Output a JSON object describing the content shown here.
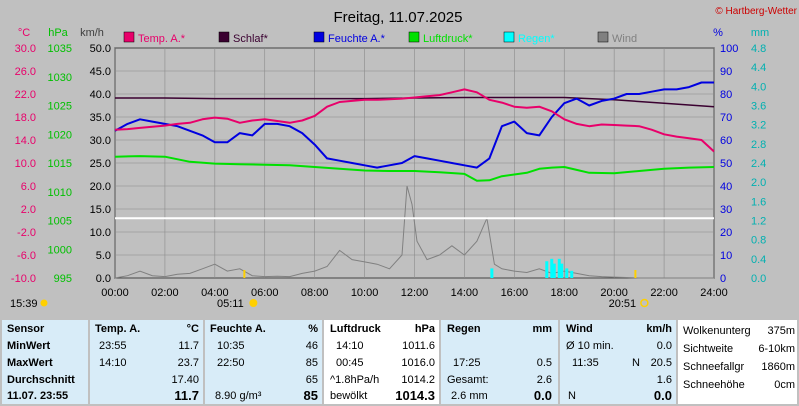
{
  "header": {
    "title": "Freitag, 11.07.2025",
    "copyright": "© Hartberg-Wetter"
  },
  "axes": {
    "unit_temp": "°C",
    "unit_hpa": "hPa",
    "unit_kmh": "km/h",
    "unit_pct": "%",
    "unit_mm": "mm",
    "temp_ticks": [
      "30.0",
      "26.0",
      "22.0",
      "18.0",
      "14.0",
      "10.0",
      "6.0",
      "2.0",
      "-2.0",
      "-6.0",
      "-10.0"
    ],
    "hpa_ticks": [
      "1035",
      "1030",
      "1025",
      "1020",
      "1015",
      "1010",
      "1005",
      "1000",
      "995"
    ],
    "kmh_ticks": [
      "50.0",
      "45.0",
      "40.0",
      "35.0",
      "30.0",
      "25.0",
      "20.0",
      "15.0",
      "10.0",
      "5.0",
      "0.0"
    ],
    "pct_ticks": [
      "100",
      "90",
      "80",
      "70",
      "60",
      "50",
      "40",
      "30",
      "20",
      "10",
      "0"
    ],
    "mm_ticks": [
      "4.8",
      "4.4",
      "4.0",
      "3.6",
      "3.2",
      "2.8",
      "2.4",
      "2.0",
      "1.6",
      "1.2",
      "0.8",
      "0.4",
      "0.0"
    ],
    "time_ticks": [
      "00:00",
      "02:00",
      "04:00",
      "06:00",
      "08:00",
      "10:00",
      "12:00",
      "14:00",
      "16:00",
      "18:00",
      "20:00",
      "22:00",
      "24:00"
    ]
  },
  "sun": {
    "sunrise": "05:11",
    "sunset": "20:51",
    "now_time": "15:39"
  },
  "colors": {
    "temp": "#e8006a",
    "schlaf": "#3a0030",
    "feuchte": "#0000e0",
    "luftdruck": "#00e000",
    "regen": "#00ffff",
    "wind": "#808080",
    "background_plot": "#c0c0c0"
  },
  "chart_data": {
    "type": "line",
    "title": "Freitag, 11.07.2025",
    "x_unit": "hour of day",
    "xlim": [
      0,
      24
    ],
    "legend_position": "top",
    "series": [
      {
        "name": "Temp. A.*",
        "axis": "°C",
        "ylim": [
          -10,
          30
        ],
        "x": [
          0,
          0.5,
          1,
          1.5,
          2,
          2.5,
          3,
          3.5,
          4,
          4.5,
          5,
          5.5,
          6,
          6.5,
          7,
          7.5,
          8,
          8.5,
          9,
          9.5,
          10,
          10.5,
          11,
          11.5,
          12,
          12.5,
          13,
          13.5,
          14,
          14.5,
          15,
          15.5,
          16,
          16.5,
          17,
          17.5,
          18,
          18.5,
          19,
          19.5,
          20,
          20.5,
          21,
          21.5,
          22,
          22.5,
          23,
          23.5,
          24
        ],
        "y": [
          15.8,
          15.9,
          16.1,
          16.3,
          16.5,
          16.8,
          17.0,
          17.6,
          17.9,
          17.7,
          17.0,
          17.4,
          17.6,
          17.3,
          17.0,
          17.4,
          18.2,
          19.8,
          20.6,
          20.8,
          21.0,
          21.0,
          21.1,
          21.2,
          21.4,
          21.6,
          21.8,
          22.3,
          22.8,
          22.3,
          21.0,
          20.5,
          19.8,
          19.6,
          19.8,
          19.0,
          17.6,
          16.8,
          16.4,
          16.7,
          16.6,
          16.5,
          16.4,
          15.8,
          15.0,
          14.6,
          14.3,
          14.0,
          12.0
        ]
      },
      {
        "name": "Schlaf*",
        "axis": "°C",
        "ylim": [
          -10,
          30
        ],
        "x": [
          0,
          2,
          4,
          6,
          8,
          10,
          12,
          14,
          16,
          18,
          20,
          22,
          24
        ],
        "y": [
          21.3,
          21.3,
          21.2,
          21.2,
          21.2,
          21.2,
          21.3,
          21.4,
          21.4,
          21.4,
          21.0,
          20.4,
          19.8
        ]
      },
      {
        "name": "Feuchte A.*",
        "axis": "%",
        "ylim": [
          0,
          100
        ],
        "x": [
          0,
          0.5,
          1,
          1.5,
          2,
          2.5,
          3,
          3.5,
          4,
          4.5,
          5,
          5.5,
          6,
          6.5,
          7,
          7.5,
          8,
          8.5,
          9,
          9.5,
          10,
          10.5,
          11,
          11.5,
          12,
          12.5,
          13,
          13.5,
          14,
          14.5,
          15,
          15.5,
          16,
          16.5,
          17,
          17.5,
          18,
          18.5,
          19,
          19.5,
          20,
          20.5,
          21,
          21.5,
          22,
          22.5,
          23,
          23.5,
          24
        ],
        "y": [
          64,
          67,
          69,
          68,
          67,
          66,
          64,
          62,
          59,
          59,
          63,
          62,
          67,
          67,
          66,
          63,
          58,
          52,
          51,
          50,
          49,
          48,
          49,
          50,
          53,
          52,
          51,
          50,
          49,
          48,
          52,
          66,
          68,
          63,
          62,
          70,
          76,
          78,
          75,
          77,
          78,
          80,
          80,
          81,
          82,
          82,
          83,
          85,
          85
        ]
      },
      {
        "name": "Luftdruck*",
        "axis": "hPa",
        "ylim": [
          995,
          1035
        ],
        "x": [
          0,
          1,
          2,
          3,
          4,
          5,
          6,
          7,
          8,
          9,
          10,
          11,
          12,
          13,
          14,
          14.5,
          15,
          15.5,
          16,
          16.5,
          17,
          17.5,
          18,
          18.5,
          19,
          20,
          21,
          22,
          23,
          24
        ],
        "y": [
          1016.1,
          1016.2,
          1016.1,
          1015.2,
          1014.9,
          1014.8,
          1014.7,
          1014.6,
          1014.3,
          1014.0,
          1013.7,
          1013.6,
          1013.6,
          1013.4,
          1013.1,
          1011.9,
          1012.0,
          1012.7,
          1013.0,
          1013.3,
          1014.0,
          1014.2,
          1014.3,
          1013.8,
          1013.3,
          1013.2,
          1013.6,
          1014.0,
          1014.2,
          1014.3
        ]
      },
      {
        "name": "Regen*",
        "axis": "mm",
        "ylim": [
          0,
          4.8
        ],
        "x": [
          15.1,
          17.3,
          17.5,
          17.6,
          17.8,
          17.9,
          18.1,
          18.3
        ],
        "y": [
          0.2,
          0.35,
          0.4,
          0.3,
          0.4,
          0.3,
          0.2,
          0.15
        ]
      },
      {
        "name": "Wind",
        "axis": "km/h",
        "ylim": [
          0,
          50
        ],
        "x": [
          0,
          0.5,
          1,
          1.5,
          2,
          2.5,
          3,
          3.5,
          4,
          4.5,
          5,
          5.5,
          6,
          6.5,
          7,
          7.5,
          8,
          8.5,
          9,
          9.5,
          10,
          10.5,
          11,
          11.5,
          11.7,
          11.9,
          12.1,
          12.5,
          13,
          13.5,
          14,
          14.5,
          14.9,
          15.2,
          15.5,
          16,
          16.5,
          17,
          17.5,
          18,
          18.5,
          19,
          19.5,
          20,
          20.5,
          21,
          21.5,
          22,
          22.5,
          23,
          23.5,
          24
        ],
        "y": [
          0,
          0.5,
          1.5,
          0.5,
          0.3,
          0.8,
          1,
          2,
          3,
          1.5,
          2,
          0.5,
          0.3,
          0.4,
          0.3,
          1,
          1.5,
          2.5,
          6,
          4,
          3.5,
          3,
          2,
          5,
          20,
          16,
          8,
          4,
          5,
          7,
          5,
          8,
          13,
          3,
          2,
          1.5,
          1.2,
          2,
          1,
          1.5,
          1,
          0.5,
          0.3,
          0.2,
          0.1,
          0,
          0,
          0,
          0,
          0,
          0,
          0
        ]
      }
    ],
    "reference_lines": [
      {
        "axis": "km/h",
        "value": 13
      }
    ]
  },
  "legend": [
    {
      "label": "Temp. A.*",
      "color": "#e8006a"
    },
    {
      "label": "Schlaf*",
      "color": "#3a0030"
    },
    {
      "label": "Feuchte A.*",
      "color": "#0000e0"
    },
    {
      "label": "Luftdruck*",
      "color": "#00e000"
    },
    {
      "label": "Regen*",
      "color": "#00ffff"
    },
    {
      "label": "Wind",
      "color": "#808080"
    }
  ],
  "stats": {
    "sensor": {
      "header": "Sensor",
      "min": "MinWert",
      "max": "MaxWert",
      "avg": "Durchschnitt",
      "current": "11.07. 23:55"
    },
    "temp": {
      "header": "Temp. A.",
      "unit": "°C",
      "min_time": "23:55",
      "min_val": "11.7",
      "max_time": "14:10",
      "max_val": "23.7",
      "avg": "17.40",
      "current": "11.7"
    },
    "feuchte": {
      "header": "Feuchte A.",
      "unit": "%",
      "min_time": "10:35",
      "min_val": "46",
      "max_time": "22:50",
      "max_val": "85",
      "avg": "65",
      "abs_humidity": "8.90 g/m³",
      "current": "85"
    },
    "luftdruck": {
      "header": "Luftdruck",
      "unit": "hPa",
      "min_time": "14:10",
      "min_val": "1011.6",
      "max_time": "00:45",
      "max_val": "1016.0",
      "trend": "^1.8hPa/h",
      "trend_val": "1014.2",
      "sky": "bewölkt",
      "current": "1014.3"
    },
    "regen": {
      "header": "Regen",
      "unit": "mm",
      "max_time": "17:25",
      "max_val": "0.5",
      "total_label": "Gesamt:",
      "total_val": "2.6",
      "current_left": "2.6 mm",
      "current": "0.0"
    },
    "wind": {
      "header": "Wind",
      "unit": "km/h",
      "avg10_label": "Ø 10 min.",
      "avg10_val": "0.0",
      "max_time": "11:35",
      "max_dir": "N",
      "max_val": "20.5",
      "avg": "1.6",
      "dir": "N",
      "current": "0.0"
    },
    "cloud": {
      "rows": [
        {
          "label": "Wolkenunterg",
          "value": "375m"
        },
        {
          "label": "Sichtweite",
          "value": "6-10km"
        },
        {
          "label": "Schneefallgr",
          "value": "1860m"
        },
        {
          "label": "Schneehöhe",
          "value": "0cm"
        }
      ]
    }
  }
}
